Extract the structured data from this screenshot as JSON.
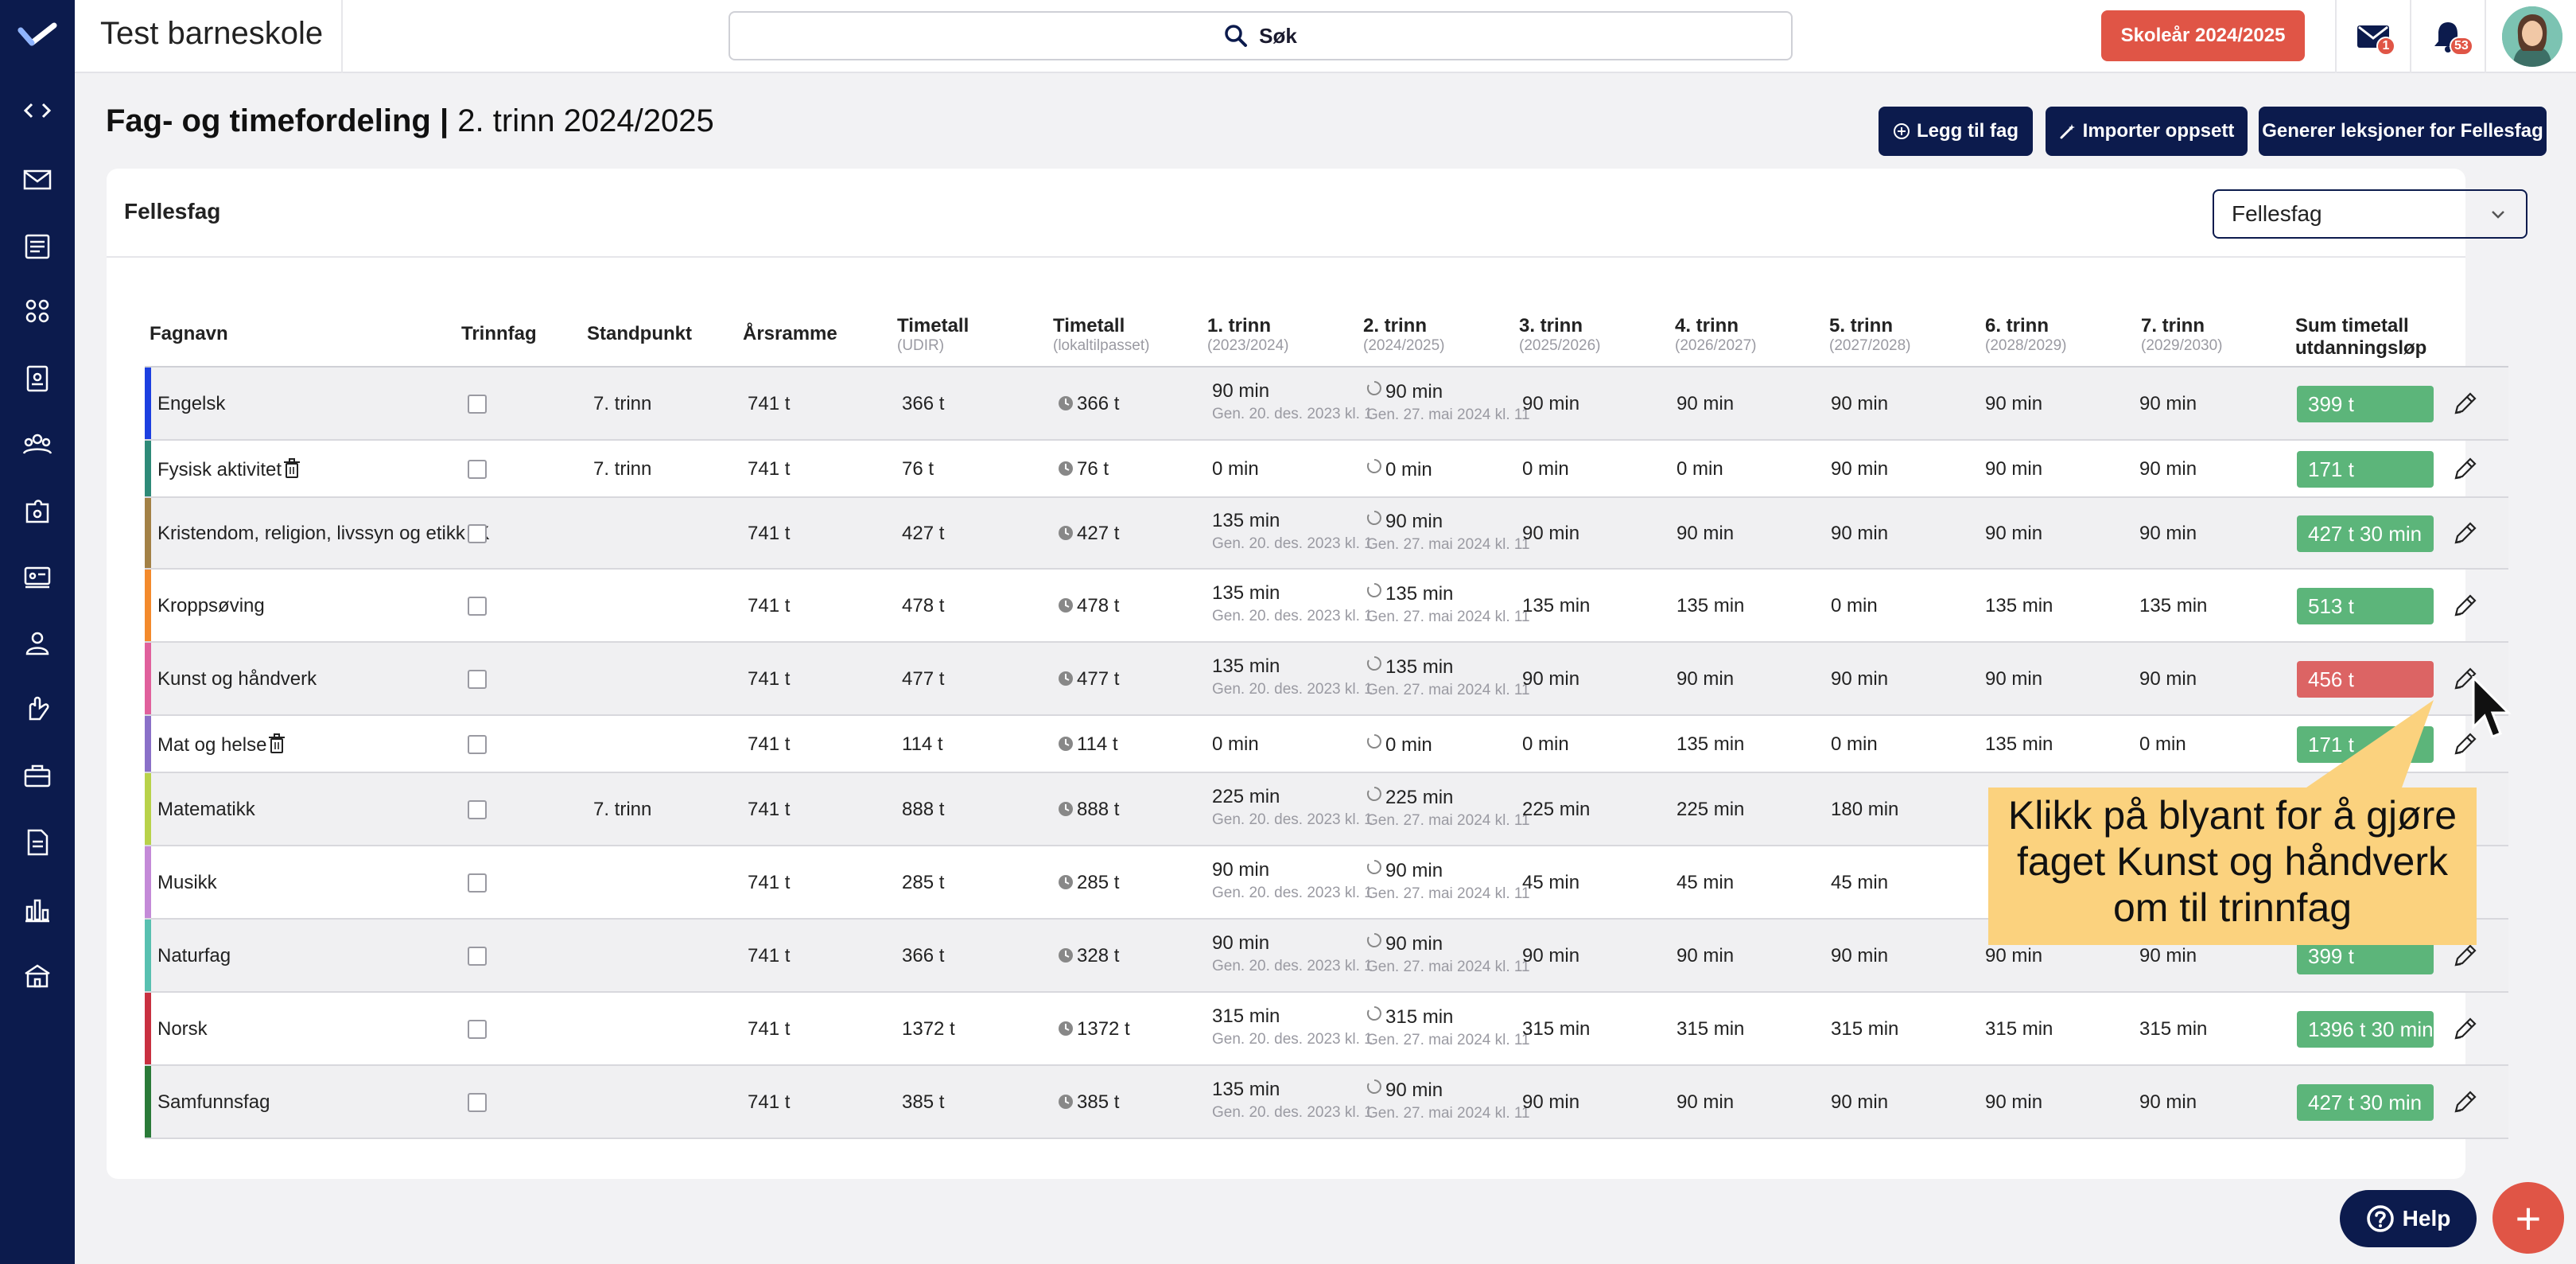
{
  "app": {
    "title": "Test barneskole",
    "search_label": "Søk",
    "school_year": "Skoleår 2024/2025",
    "mail_count": "1",
    "notification_count": "53"
  },
  "sidebar": {
    "icons": [
      "code-icon",
      "mail-icon",
      "news-icon",
      "group-icon",
      "clipboard-icon",
      "team-icon",
      "puzzle-icon",
      "classroom-icon",
      "person-icon",
      "hand-icon",
      "briefcase-icon",
      "document-icon",
      "bar-chart-icon",
      "school-icon"
    ]
  },
  "page": {
    "title_bold": "Fag- og timefordeling |",
    "title_rest": " 2. trinn 2024/2025",
    "add_subject": "Legg til fag",
    "import_setup": "Importer oppsett",
    "generate_lessons": "Generer leksjoner for Fellesfag"
  },
  "card": {
    "title": "Fellesfag",
    "select_value": "Fellesfag"
  },
  "table": {
    "headers": {
      "name": "Fagnavn",
      "trinnfag": "Trinnfag",
      "standpunkt": "Standpunkt",
      "arsramme": "Årsramme",
      "timetall_udir": "Timetall",
      "timetall_udir_sub": "(UDIR)",
      "timetall_lokal": "Timetall",
      "timetall_lokal_sub": "(lokaltilpasset)",
      "t1": "1. trinn",
      "t1_sub": "(2023/2024)",
      "t2": "2. trinn",
      "t2_sub": "(2024/2025)",
      "t3": "3. trinn",
      "t3_sub": "(2025/2026)",
      "t4": "4. trinn",
      "t4_sub": "(2026/2027)",
      "t5": "5. trinn",
      "t5_sub": "(2027/2028)",
      "t6": "6. trinn",
      "t6_sub": "(2028/2029)",
      "t7": "7. trinn",
      "t7_sub": "(2029/2030)",
      "sum_line1": "Sum timetall",
      "sum_line2": "utdanningsløp"
    },
    "gen1": "Gen. 20. des. 2023 kl. 1",
    "gen2": "Gen. 27. mai 2024 kl. 11",
    "rows": [
      {
        "name": "Engelsk",
        "color": "#1c3fe0",
        "trash": false,
        "standpunkt": "7. trinn",
        "arsramme": "741 t",
        "udir": "366 t",
        "lokal": "366 t",
        "t1": "90 min",
        "t2": "90 min",
        "t3": "90 min",
        "t4": "90 min",
        "t5": "90 min",
        "t6": "90 min",
        "t7": "90 min",
        "sum": "399 t",
        "sum_color": "#5cb57a",
        "gen": true
      },
      {
        "name": "Fysisk aktivitet",
        "color": "#2e8a78",
        "trash": true,
        "standpunkt": "7. trinn",
        "arsramme": "741 t",
        "udir": "76 t",
        "lokal": "76 t",
        "t1": "0 min",
        "t2": "0 min",
        "t3": "0 min",
        "t4": "0 min",
        "t5": "90 min",
        "t6": "90 min",
        "t7": "90 min",
        "sum": "171 t",
        "sum_color": "#5cb57a",
        "gen": false
      },
      {
        "name": "Kristendom, religion, livssyn og etikk (K",
        "color": "#a38146",
        "trash": false,
        "standpunkt": "",
        "arsramme": "741 t",
        "udir": "427 t",
        "lokal": "427 t",
        "t1": "135 min",
        "t2": "90 min",
        "t3": "90 min",
        "t4": "90 min",
        "t5": "90 min",
        "t6": "90 min",
        "t7": "90 min",
        "sum": "427 t 30 min",
        "sum_color": "#5cb57a",
        "gen": true
      },
      {
        "name": "Kroppsøving",
        "color": "#f38a2c",
        "trash": false,
        "standpunkt": "",
        "arsramme": "741 t",
        "udir": "478 t",
        "lokal": "478 t",
        "t1": "135 min",
        "t2": "135 min",
        "t3": "135 min",
        "t4": "135 min",
        "t5": "0 min",
        "t6": "135 min",
        "t7": "135 min",
        "sum": "513 t",
        "sum_color": "#5cb57a",
        "gen": true
      },
      {
        "name": "Kunst og håndverk",
        "color": "#e0609c",
        "trash": false,
        "standpunkt": "",
        "arsramme": "741 t",
        "udir": "477 t",
        "lokal": "477 t",
        "t1": "135 min",
        "t2": "135 min",
        "t3": "90 min",
        "t4": "90 min",
        "t5": "90 min",
        "t6": "90 min",
        "t7": "90 min",
        "sum": "456 t",
        "sum_color": "#dc6464",
        "gen": true
      },
      {
        "name": "Mat og helse",
        "color": "#8a70c8",
        "trash": true,
        "standpunkt": "",
        "arsramme": "741 t",
        "udir": "114 t",
        "lokal": "114 t",
        "t1": "0 min",
        "t2": "0 min",
        "t3": "0 min",
        "t4": "135 min",
        "t5": "0 min",
        "t6": "135 min",
        "t7": "0 min",
        "sum": "171 t",
        "sum_color": "#5cb57a",
        "gen": false
      },
      {
        "name": "Matematikk",
        "color": "#b8d24a",
        "trash": false,
        "standpunkt": "7. trinn",
        "arsramme": "741 t",
        "udir": "888 t",
        "lokal": "888 t",
        "t1": "225 min",
        "t2": "225 min",
        "t3": "225 min",
        "t4": "225 min",
        "t5": "180 min",
        "t6": "",
        "t7": "",
        "sum": "",
        "sum_color": "#5cb57a",
        "gen": true
      },
      {
        "name": "Musikk",
        "color": "#c48ad8",
        "trash": false,
        "standpunkt": "",
        "arsramme": "741 t",
        "udir": "285 t",
        "lokal": "285 t",
        "t1": "90 min",
        "t2": "90 min",
        "t3": "45 min",
        "t4": "45 min",
        "t5": "45 min",
        "t6": "",
        "t7": "",
        "sum": "",
        "sum_color": "#5cb57a",
        "gen": true
      },
      {
        "name": "Naturfag",
        "color": "#58c0b0",
        "trash": false,
        "standpunkt": "",
        "arsramme": "741 t",
        "udir": "366 t",
        "lokal": "328 t",
        "t1": "90 min",
        "t2": "90 min",
        "t3": "90 min",
        "t4": "90 min",
        "t5": "90 min",
        "t6": "90 min",
        "t7": "90 min",
        "sum": "399 t",
        "sum_color": "#5cb57a",
        "gen": true
      },
      {
        "name": "Norsk",
        "color": "#c83040",
        "trash": false,
        "standpunkt": "",
        "arsramme": "741 t",
        "udir": "1372 t",
        "lokal": "1372 t",
        "t1": "315 min",
        "t2": "315 min",
        "t3": "315 min",
        "t4": "315 min",
        "t5": "315 min",
        "t6": "315 min",
        "t7": "315 min",
        "sum": "1396 t 30 min",
        "sum_color": "#5cb57a",
        "gen": true
      },
      {
        "name": "Samfunnsfag",
        "color": "#2a7a38",
        "trash": false,
        "standpunkt": "",
        "arsramme": "741 t",
        "udir": "385 t",
        "lokal": "385 t",
        "t1": "135 min",
        "t2": "90 min",
        "t3": "90 min",
        "t4": "90 min",
        "t5": "90 min",
        "t6": "90 min",
        "t7": "90 min",
        "sum": "427 t 30 min",
        "sum_color": "#5cb57a",
        "gen": true
      }
    ]
  },
  "tooltip": {
    "line1": "Klikk på blyant for å gjøre",
    "line2": "faget Kunst og håndverk",
    "line3": "om til trinnfag",
    "color": "#fbd27e"
  },
  "help_label": "Help",
  "fab_label": "+"
}
